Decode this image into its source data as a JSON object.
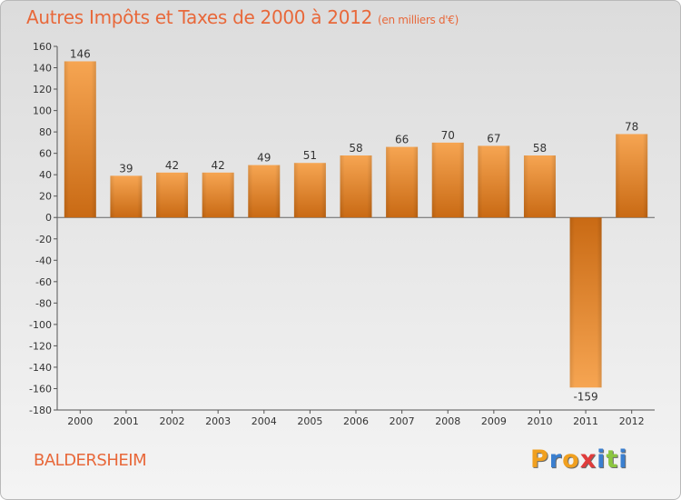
{
  "header": {
    "title": "Autres Impôts et Taxes de 2000 à 2012",
    "unit": "(en milliers d'€)"
  },
  "footer": {
    "commune": "BALDERSHEIM",
    "brand_letters": [
      "P",
      "r",
      "o",
      "x",
      "i",
      "t",
      "i"
    ],
    "brand_colors": [
      "#f0a020",
      "#3a7fd0",
      "#f0a020",
      "#e03c3c",
      "#3a7fd0",
      "#8cc63f",
      "#3a7fd0"
    ]
  },
  "colors": {
    "bar_light": "#f6a552",
    "bar_dark": "#c96a14",
    "title": "#e8683a"
  },
  "chart_data": {
    "type": "bar",
    "categories": [
      "2000",
      "2001",
      "2002",
      "2003",
      "2004",
      "2005",
      "2006",
      "2007",
      "2008",
      "2009",
      "2010",
      "2011",
      "2012"
    ],
    "values": [
      146,
      39,
      42,
      42,
      49,
      51,
      58,
      66,
      70,
      67,
      58,
      -159,
      78
    ],
    "data_labels": [
      "146",
      "39",
      "42",
      "42",
      "49",
      "51",
      "58",
      "66",
      "70",
      "67",
      "58",
      "-159",
      "78"
    ],
    "ylim": [
      -180,
      160
    ],
    "yticks": [
      160,
      140,
      120,
      100,
      80,
      60,
      40,
      20,
      0,
      -20,
      -40,
      -60,
      -80,
      -100,
      -120,
      -140,
      -160,
      -180
    ],
    "grid": false,
    "legend": "none"
  }
}
